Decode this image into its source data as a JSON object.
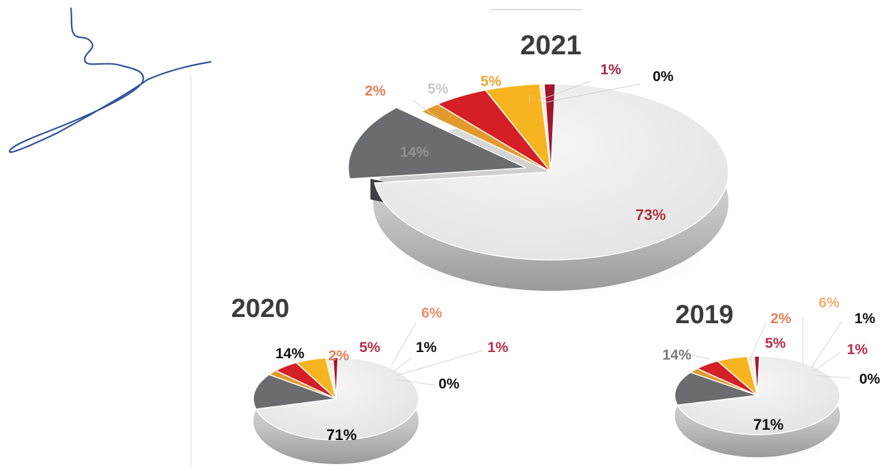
{
  "colors": {
    "light_grey": "#ebebeb",
    "dark_grey": "#6b6c70",
    "orange": "#e39a2c",
    "red": "#d51f26",
    "amber": "#f6b520",
    "cream": "#f7ecd6",
    "crimson": "#a3172c"
  },
  "chart_data": [
    {
      "type": "pie",
      "title": "2021",
      "labels": [
        "73%",
        "14%",
        "2%",
        "5%",
        "5%",
        "0%",
        "1%"
      ],
      "values": [
        73,
        14,
        2,
        5,
        5,
        0,
        1
      ],
      "label_colors": [
        "#b0313f",
        "#9ea0a4",
        "#e0805a",
        "#c8c8c8",
        "#efa534",
        "#111111",
        "#9e2a48"
      ]
    },
    {
      "type": "pie",
      "title": "2020",
      "labels": [
        "71%",
        "14%",
        "2%",
        "5%",
        "6%",
        "1%",
        "0%",
        "1%"
      ],
      "values": [
        71,
        14,
        2,
        5,
        6,
        1,
        0,
        1
      ],
      "label_colors": [
        "#111111",
        "#111111",
        "#e0805a",
        "#b83048",
        "#e88f6a",
        "#111111",
        "#111111",
        "#b83048"
      ]
    },
    {
      "type": "pie",
      "title": "2019",
      "labels": [
        "71%",
        "14%",
        "2%",
        "5%",
        "6%",
        "1%",
        "0%",
        "1%"
      ],
      "values": [
        71,
        14,
        2,
        5,
        6,
        1,
        0,
        1
      ],
      "label_colors": [
        "#111111",
        "#7a7b7e",
        "#e0805a",
        "#b83048",
        "#f0b070",
        "#111111",
        "#111111",
        "#b83048"
      ]
    }
  ]
}
